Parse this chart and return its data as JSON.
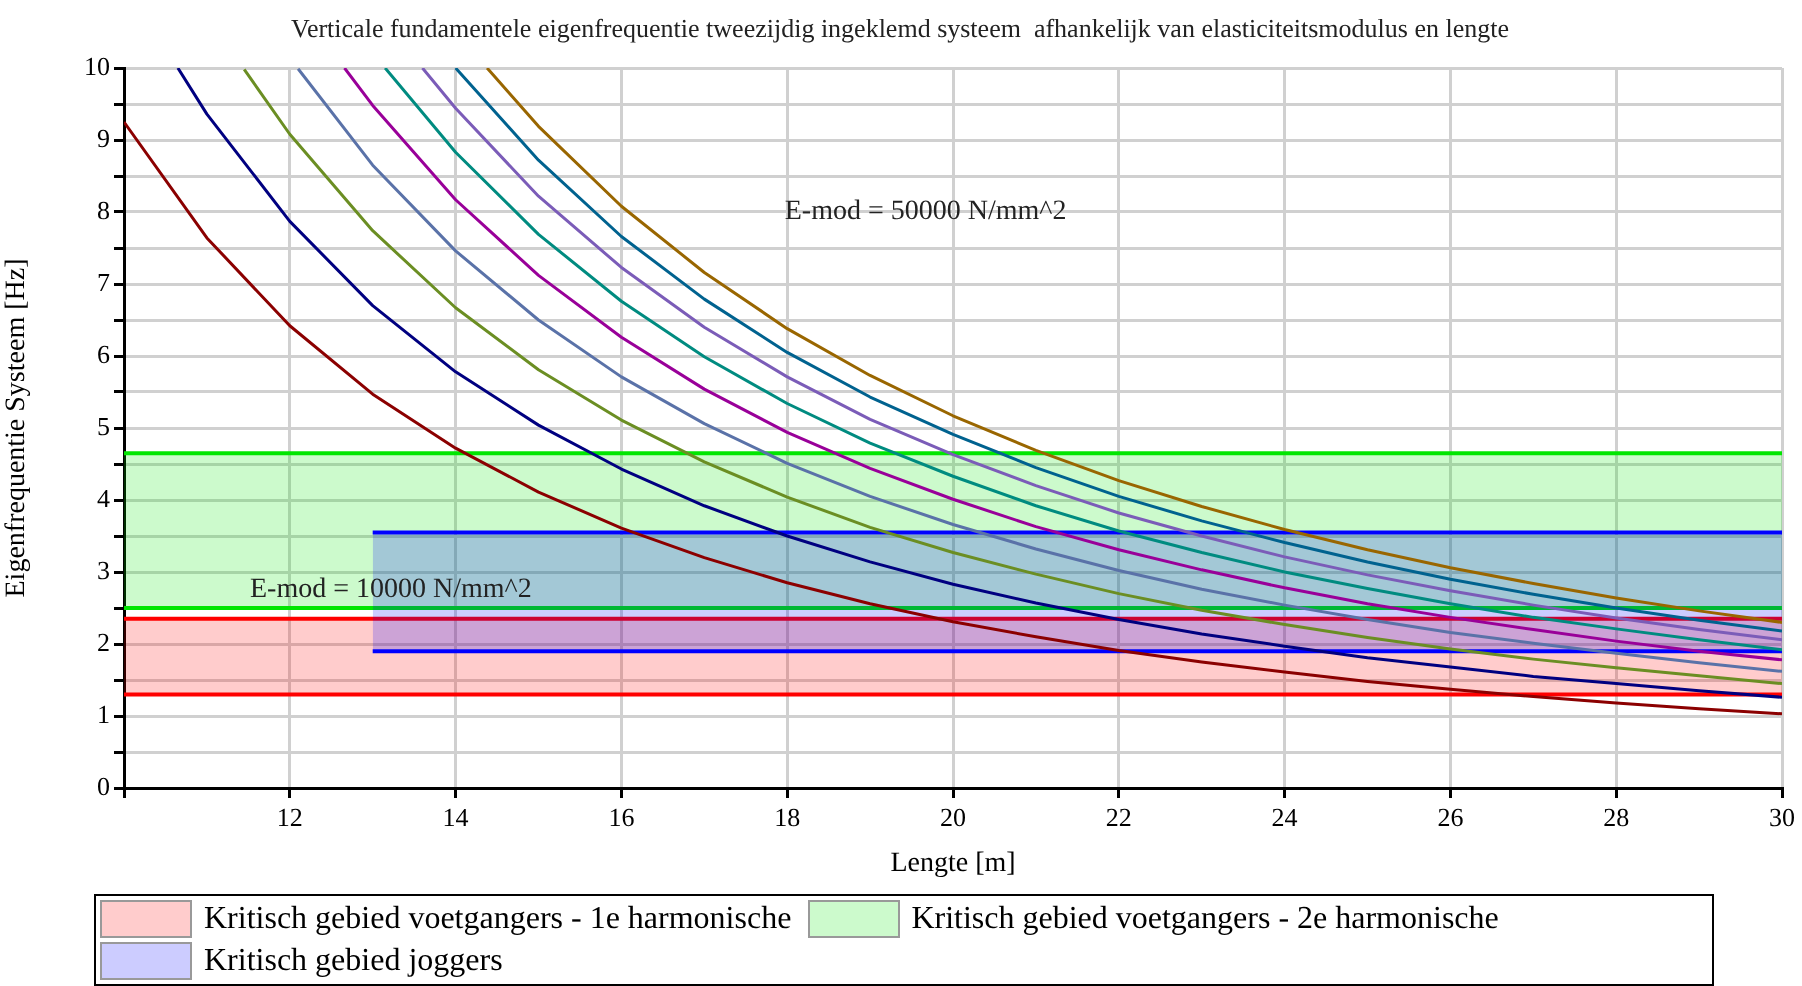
{
  "chart_data": {
    "type": "line",
    "title": "Verticale fundamentele eigenfrequentie tweezijdig ingeklemd systeem  afhankelijk van elasticiteitsmodulus en lengte",
    "xlabel": "Lengte [m]",
    "ylabel": "Eigenfrequentie Systeem [Hz]",
    "xlim": [
      10,
      30
    ],
    "xticks": [
      {
        "value": 10,
        "label": null
      },
      12,
      14,
      16,
      18,
      20,
      22,
      24,
      26,
      28,
      30
    ],
    "ylim": [
      0,
      10
    ],
    "yticks": [
      0,
      {
        "value": 0.5,
        "label": null
      },
      1,
      {
        "value": 1.5,
        "label": null
      },
      2,
      {
        "value": 2.5,
        "label": null
      },
      3,
      {
        "value": 3.5,
        "label": null
      },
      4,
      {
        "value": 4.5,
        "label": null
      },
      5,
      {
        "value": 5.5,
        "label": null
      },
      6,
      {
        "value": 6.5,
        "label": null
      },
      7,
      {
        "value": 7.5,
        "label": null
      },
      8,
      {
        "value": 8.5,
        "label": null
      },
      9,
      {
        "value": 9.5,
        "label": null
      },
      10
    ],
    "grid": true,
    "legend": "bottom",
    "marker": "none",
    "line_style": "solid",
    "series": [
      {
        "color": "#8b0000",
        "x": [
          10,
          11,
          12,
          13,
          14,
          15,
          16,
          17,
          18,
          19,
          20,
          21,
          22,
          23,
          24,
          25,
          26,
          27,
          28,
          29,
          30
        ],
        "values": [
          9.25,
          7.64,
          6.42,
          5.47,
          4.72,
          4.11,
          3.61,
          3.2,
          2.85,
          2.56,
          2.31,
          2.1,
          1.91,
          1.75,
          1.61,
          1.48,
          1.37,
          1.27,
          1.18,
          1.1,
          1.03
        ]
      },
      {
        "color": "#000080",
        "x": [
          10.65,
          11,
          12,
          13,
          14,
          15,
          16,
          17,
          18,
          19,
          20,
          21,
          22,
          23,
          24,
          25,
          26,
          27,
          28,
          29,
          30
        ],
        "values": [
          10,
          9.36,
          7.87,
          6.7,
          5.78,
          5.04,
          4.43,
          3.92,
          3.5,
          3.14,
          2.83,
          2.57,
          2.34,
          2.14,
          1.97,
          1.81,
          1.68,
          1.55,
          1.45,
          1.35,
          1.26
        ]
      },
      {
        "color": "#6b8e23",
        "x": [
          11.45,
          12,
          13,
          14,
          15,
          16,
          17,
          18,
          19,
          20,
          21,
          22,
          23,
          24,
          25,
          26,
          27,
          28,
          29,
          30
        ],
        "values": [
          9.98,
          9.08,
          7.74,
          6.67,
          5.81,
          5.11,
          4.53,
          4.04,
          3.62,
          3.27,
          2.97,
          2.7,
          2.47,
          2.27,
          2.09,
          1.93,
          1.79,
          1.67,
          1.56,
          1.45
        ]
      },
      {
        "color": "#5a72a8",
        "x": [
          12.1,
          13,
          14,
          15,
          16,
          17,
          18,
          19,
          20,
          21,
          22,
          23,
          24,
          25,
          26,
          27,
          28,
          29,
          30
        ],
        "values": [
          9.99,
          8.65,
          7.46,
          6.5,
          5.71,
          5.06,
          4.51,
          4.05,
          3.66,
          3.32,
          3.02,
          2.76,
          2.54,
          2.34,
          2.16,
          2.01,
          1.87,
          1.74,
          1.62
        ]
      },
      {
        "color": "#990099",
        "x": [
          12.66,
          13,
          14,
          15,
          16,
          17,
          18,
          19,
          20,
          21,
          22,
          23,
          24,
          25,
          26,
          27,
          28,
          29,
          30
        ],
        "values": [
          10,
          9.48,
          8.17,
          7.12,
          6.26,
          5.54,
          4.94,
          4.44,
          4.01,
          3.63,
          3.31,
          3.03,
          2.78,
          2.56,
          2.37,
          2.2,
          2.04,
          1.9,
          1.78
        ]
      },
      {
        "color": "#008b80",
        "x": [
          13.15,
          14,
          15,
          16,
          17,
          18,
          19,
          20,
          21,
          22,
          23,
          24,
          25,
          26,
          27,
          28,
          29,
          30
        ],
        "values": [
          10,
          8.83,
          7.69,
          6.76,
          5.99,
          5.34,
          4.79,
          4.33,
          3.92,
          3.57,
          3.27,
          3,
          2.77,
          2.56,
          2.37,
          2.21,
          2.06,
          1.92
        ]
      },
      {
        "color": "#7b5cb8",
        "x": [
          13.6,
          14,
          15,
          16,
          17,
          18,
          19,
          20,
          21,
          22,
          23,
          24,
          25,
          26,
          27,
          28,
          29,
          30
        ],
        "values": [
          10,
          9.44,
          8.22,
          7.23,
          6.4,
          5.71,
          5.12,
          4.63,
          4.2,
          3.82,
          3.5,
          3.21,
          2.96,
          2.74,
          2.54,
          2.36,
          2.2,
          2.06
        ]
      },
      {
        "color": "#00628f",
        "x": [
          14,
          15,
          16,
          17,
          18,
          19,
          20,
          21,
          22,
          23,
          24,
          25,
          26,
          27,
          28,
          29,
          30
        ],
        "values": [
          10,
          8.72,
          7.66,
          6.79,
          6.05,
          5.43,
          4.91,
          4.45,
          4.05,
          3.71,
          3.41,
          3.14,
          2.9,
          2.69,
          2.5,
          2.33,
          2.18
        ]
      },
      {
        "color": "#996600",
        "x": [
          14.38,
          15,
          16,
          17,
          18,
          19,
          20,
          21,
          22,
          23,
          24,
          25,
          26,
          27,
          28,
          29,
          30
        ],
        "values": [
          10,
          9.19,
          8.08,
          7.16,
          6.38,
          5.73,
          5.17,
          4.69,
          4.27,
          3.91,
          3.59,
          3.31,
          3.06,
          2.84,
          2.64,
          2.46,
          2.3
        ]
      },
      {
        "type": "line",
        "color": "#0000ff",
        "x": [
          13,
          30
        ],
        "values": [
          1.9,
          1.9
        ]
      },
      {
        "type": "area",
        "name": "Kritisch gebied joggers",
        "color": "#0000ff",
        "x": [
          13,
          30
        ],
        "values": [
          3.55,
          3.55
        ]
      }
    ],
    "bands": [
      {
        "axis": "y",
        "from": 1.3,
        "to": 2.35,
        "label": "Kritisch gebied voetgangers - 1e harmonische",
        "color": "#ff0000"
      },
      {
        "axis": "y",
        "from": 2.5,
        "to": 4.65,
        "label": "Kritisch gebied voetgangers - 2e harmonische",
        "color": "#00e600"
      }
    ],
    "ref_lines": [
      {
        "axis": "y",
        "value": 1.3,
        "color": "#ff0000"
      },
      {
        "axis": "y",
        "value": 2.35,
        "color": "#ff0000"
      },
      {
        "axis": "y",
        "value": 2.5,
        "color": "#00e600"
      },
      {
        "axis": "y",
        "value": 4.65,
        "color": "#00e600"
      }
    ],
    "annotations": [
      "E-mod = 50000 N/mm^2",
      "E-mod = 10000 N/mm^2"
    ]
  }
}
